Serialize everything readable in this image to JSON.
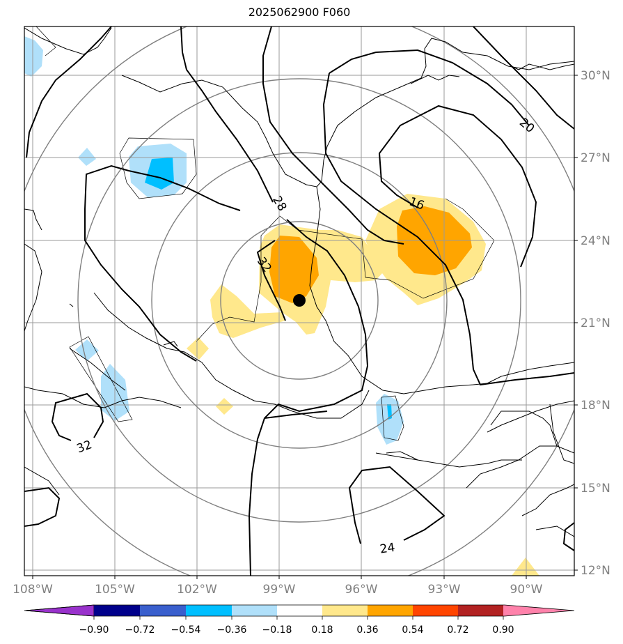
{
  "title": "2025062900 F060",
  "axes": {
    "lon_labels": [
      "108°W",
      "105°W",
      "102°W",
      "99°W",
      "96°W",
      "93°W",
      "90°W"
    ],
    "lat_labels": [
      "30°N",
      "27°N",
      "24°N",
      "21°N",
      "18°N",
      "15°N",
      "12°N"
    ],
    "tick_label_color": "#808080"
  },
  "contour_labels": [
    "28",
    "32",
    "16",
    "20",
    "32",
    "24"
  ],
  "colorbar": {
    "tick_labels": [
      "−0.90",
      "−0.72",
      "−0.54",
      "−0.36",
      "−0.18",
      "0.18",
      "0.36",
      "0.54",
      "0.72",
      "0.90"
    ],
    "colors": [
      "#9932cc",
      "#00008b",
      "#3a5fcd",
      "#00bfff",
      "#b0e0fa",
      "#ffffff",
      "#ffe88c",
      "#ffa500",
      "#ff4500",
      "#b22222",
      "#ff82ab"
    ],
    "extend": "both"
  },
  "marker": {
    "type": "black-dot",
    "color": "#000000"
  },
  "fill_colors": {
    "light_blue": "#b0e0fa",
    "blue": "#00bfff",
    "light_yellow": "#ffe88c",
    "orange": "#ffa500"
  }
}
